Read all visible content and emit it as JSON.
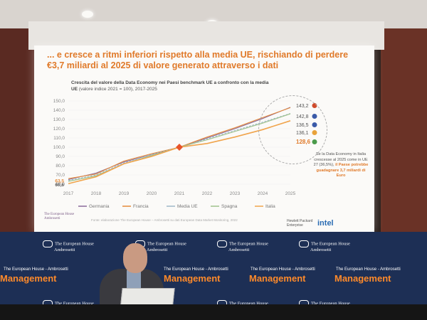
{
  "slide": {
    "title_line1": "... e cresce a ritmi inferiori rispetto alla media UE, rischiando di perdere",
    "title_line2": "€3,7 miliardi al 2025 di valore generato attraverso i dati",
    "chart_title_bold": "Crescita del valore della Data Economy nei Paesi benchmark UE a confronto con la media UE",
    "chart_title_rest": " (valore indice 2021 = 100), 2017-2025",
    "callout_text": "Se la Data Economy in Italia crescesse al 2025 come in UE 27 (36,5%), ",
    "callout_bold": "il Paese potrebbe guadagnare 3,7 miliardi di Euro",
    "source": "Fonte: elaborazione The European House – Ambrosetti su dati European Data Market Monitoring, 2022",
    "logo_teha_line1": "The European House",
    "logo_teha_line2": "Ambrosetti",
    "logo_hpe_line1": "Hewlett Packard",
    "logo_hpe_line2": "Enterprise",
    "logo_intel": "intel"
  },
  "chart_data": {
    "type": "line",
    "x": [
      "2017",
      "2018",
      "2019",
      "2020",
      "2021",
      "2022",
      "2023",
      "2024",
      "2025"
    ],
    "ylim": [
      60,
      150
    ],
    "yticks": [
      "60,0",
      "70,0",
      "80,0",
      "90,0",
      "100,0",
      "110,0",
      "120,0",
      "130,0",
      "140,0",
      "150,0"
    ],
    "series": [
      {
        "name": "Germania",
        "color": "#8a6a9a",
        "values": [
          65,
          72,
          84,
          92,
          100,
          110,
          120,
          131,
          143.2
        ]
      },
      {
        "name": "Francia",
        "color": "#e58a3a",
        "values": [
          66,
          71,
          85,
          93,
          100,
          111,
          121,
          132,
          142.8
        ]
      },
      {
        "name": "Media UE",
        "color": "#9fb7c9",
        "values": [
          64,
          70,
          83,
          92,
          100,
          109,
          118,
          127,
          136.5
        ]
      },
      {
        "name": "Spagna",
        "color": "#9ec28a",
        "values": [
          63,
          69,
          82,
          91,
          100,
          108,
          117,
          126,
          136.1
        ]
      },
      {
        "name": "Italia",
        "color": "#f0a44c",
        "values": [
          60.6,
          68,
          82,
          90,
          100,
          104,
          111,
          119,
          128.6
        ]
      }
    ],
    "start_labels": [
      "63,5",
      "60,6"
    ],
    "end_labels": [
      "143,2",
      "142,8",
      "136,5",
      "136,1",
      "128,6"
    ],
    "legend_position": "bottom"
  },
  "stage": {
    "brand_line1": "The European House",
    "brand_line2": "Ambrosetti",
    "management": "Management",
    "management_sub": "The European House - Ambrosetti"
  }
}
